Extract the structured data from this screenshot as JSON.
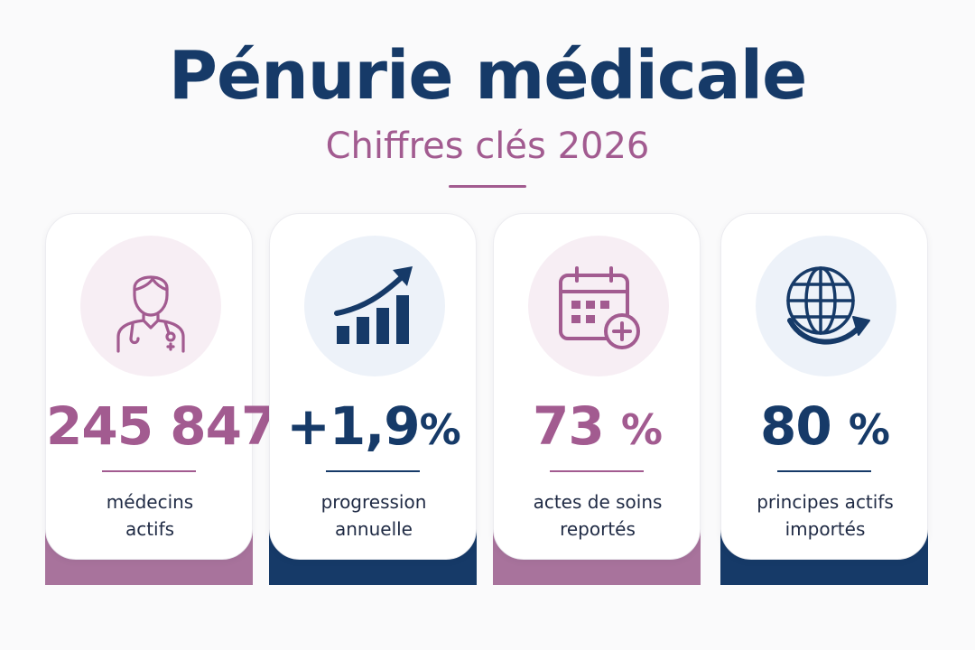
{
  "header": {
    "title": "Pénurie médicale",
    "subtitle": "Chiffres clés 2026"
  },
  "colors": {
    "plum": "#a25b90",
    "navy": "#163a68",
    "background": "#fafafb"
  },
  "cards": [
    {
      "icon": "doctor-icon",
      "value": "245 847",
      "unit": "",
      "label_line1": "médecins",
      "label_line2": "actifs",
      "accent": "plum"
    },
    {
      "icon": "growth-chart-icon",
      "value": "+1,9",
      "unit": "%",
      "label_line1": "progression",
      "label_line2": "annuelle",
      "accent": "navy"
    },
    {
      "icon": "calendar-add-icon",
      "value": "73",
      "unit": "%",
      "label_line1": "actes de soins",
      "label_line2": "reportés",
      "accent": "plum"
    },
    {
      "icon": "globe-arrow-icon",
      "value": "80",
      "unit": "%",
      "label_line1": "principes actifs",
      "label_line2": "importés",
      "accent": "navy"
    }
  ]
}
